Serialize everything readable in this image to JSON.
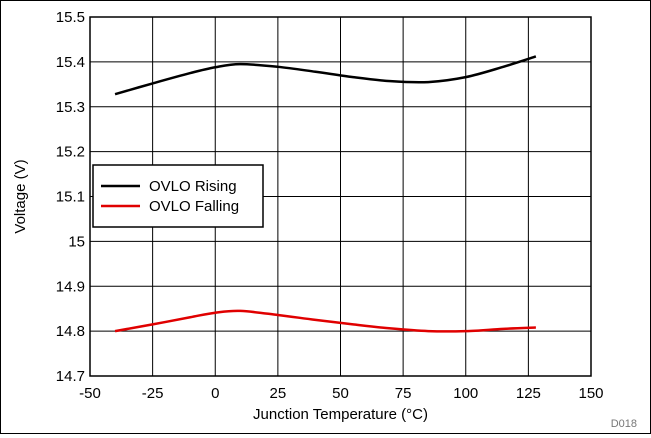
{
  "chart_data": {
    "type": "line",
    "xlabel": "Junction Temperature (°C)",
    "ylabel": "Voltage (V)",
    "xlim": [
      -50,
      150
    ],
    "ylim": [
      14.7,
      15.5
    ],
    "xticks": [
      -50,
      -25,
      0,
      25,
      50,
      75,
      100,
      125,
      150
    ],
    "yticks": [
      14.7,
      14.8,
      14.9,
      15,
      15.1,
      15.2,
      15.3,
      15.4,
      15.5
    ],
    "xtick_labels": [
      "-50",
      "-25",
      "0",
      "25",
      "50",
      "75",
      "100",
      "125",
      "150"
    ],
    "ytick_labels": [
      "14.7",
      "14.8",
      "14.9",
      "15",
      "15.1",
      "15.2",
      "15.3",
      "15.4",
      "15.5"
    ],
    "grid": true,
    "legend_position": "left",
    "series": [
      {
        "name": "OVLO Rising",
        "color": "#000000",
        "x": [
          -40,
          -25,
          -10,
          0,
          10,
          25,
          40,
          55,
          70,
          85,
          100,
          115,
          128
        ],
        "y": [
          15.328,
          15.352,
          15.375,
          15.388,
          15.395,
          15.389,
          15.378,
          15.366,
          15.357,
          15.355,
          15.366,
          15.389,
          15.412
        ]
      },
      {
        "name": "OVLO Falling",
        "color": "#e00000",
        "x": [
          -40,
          -25,
          -10,
          0,
          10,
          25,
          40,
          55,
          70,
          85,
          100,
          115,
          128
        ],
        "y": [
          14.8,
          14.815,
          14.831,
          14.841,
          14.845,
          14.836,
          14.825,
          14.815,
          14.806,
          14.8,
          14.8,
          14.805,
          14.808
        ]
      }
    ],
    "annotation": "D018"
  }
}
